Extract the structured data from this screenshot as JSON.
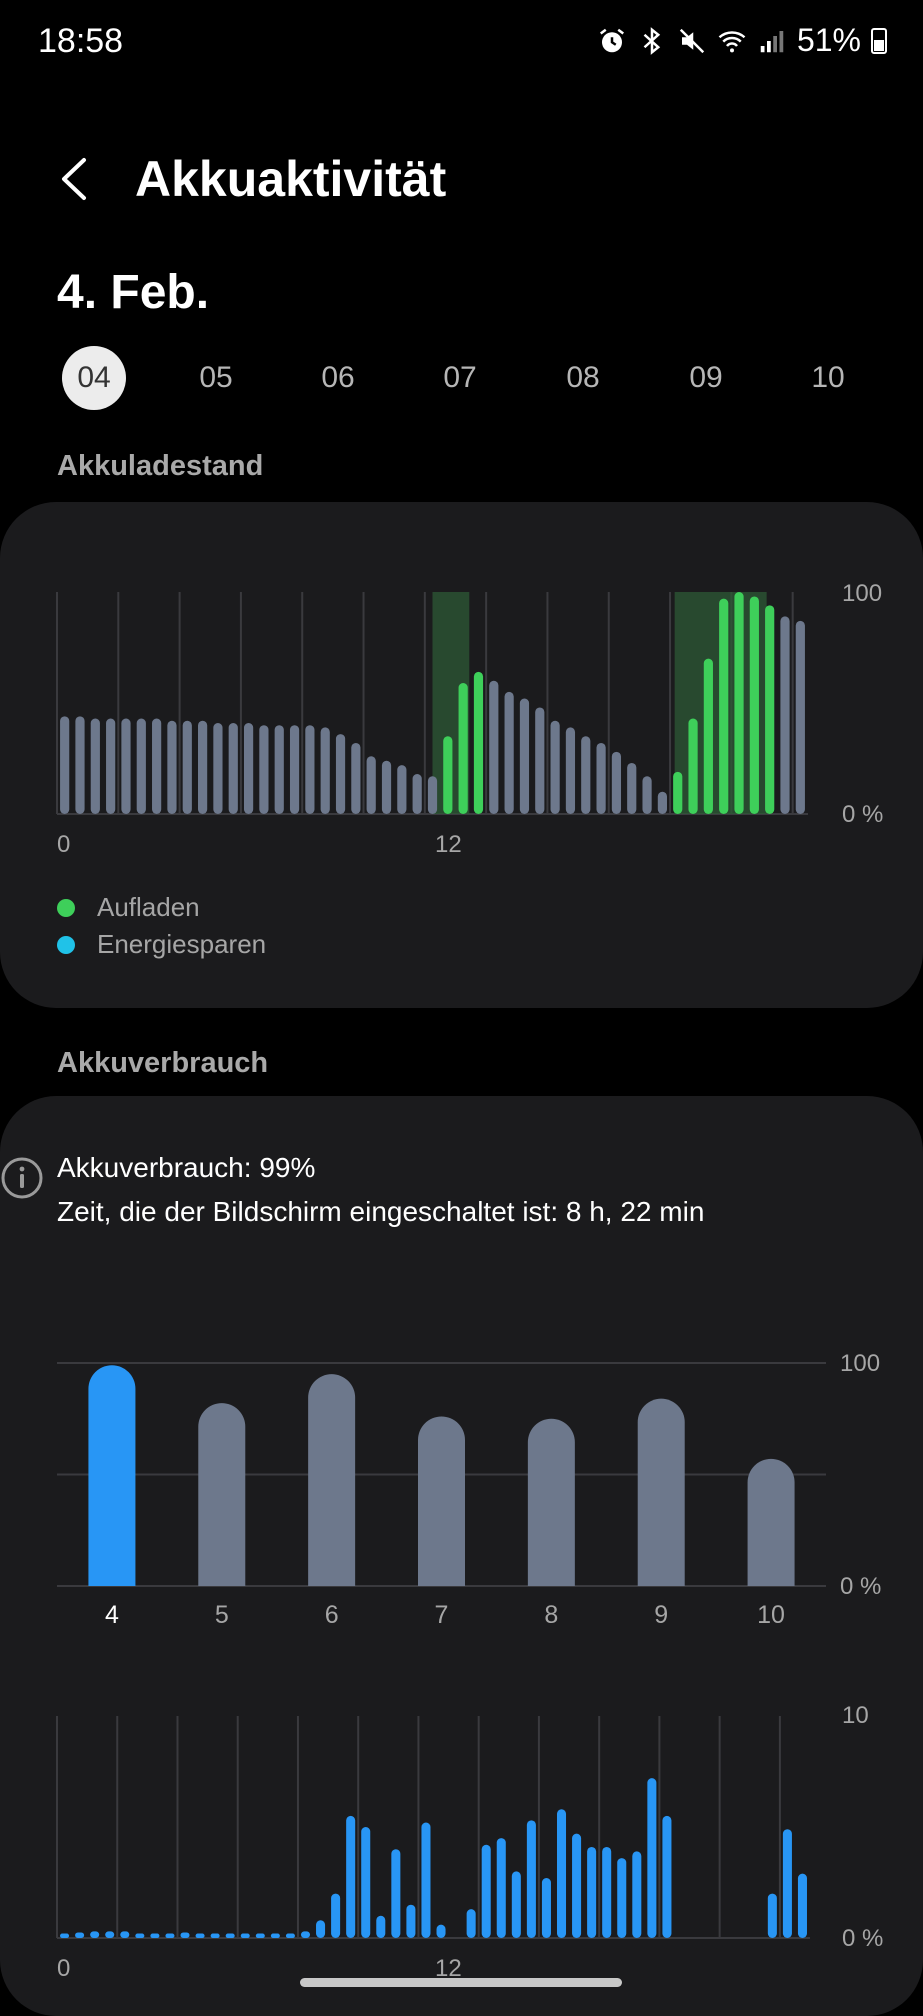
{
  "status_bar": {
    "time": "18:58",
    "battery_percent": "51%",
    "battery_level": 0.51,
    "icons": [
      "alarm-icon",
      "bluetooth-icon",
      "mute-icon",
      "wifi-icon",
      "signal-icon",
      "battery-icon"
    ]
  },
  "header": {
    "title": "Akkuaktivität",
    "back_icon": "back-arrow-icon"
  },
  "date": {
    "title": "4. Feb.",
    "days": [
      "04",
      "05",
      "06",
      "07",
      "08",
      "09",
      "10"
    ],
    "selected_index": 0
  },
  "level_section": {
    "label": "Akkuladestand",
    "legend": [
      {
        "label": "Aufladen",
        "color": "#3ecf5a"
      },
      {
        "label": "Energiesparen",
        "color": "#20c2e8"
      }
    ]
  },
  "usage_section": {
    "label": "Akkuverbrauch",
    "usage_line": "Akkuverbrauch: 99%",
    "screen_line": "Zeit, die der Bildschirm eingeschaltet ist: 8 h, 22 min"
  },
  "colors": {
    "background": "#000000",
    "card": "#1b1b1d",
    "bar_gray": "#6d788c",
    "charging": "#3ecf5a",
    "charging_band": "#2e5a36",
    "usage_blue": "#2896f5",
    "grid": "#3a3a3e",
    "label_gray": "#a6a6a6"
  },
  "chart_data": [
    {
      "type": "bar",
      "x_ticks": [
        "0",
        "12"
      ],
      "ylim": [
        0,
        100
      ],
      "y_ticks": [
        "100",
        "0 %"
      ],
      "values": [
        44,
        44,
        43,
        43,
        43,
        43,
        43,
        42,
        42,
        42,
        41,
        41,
        41,
        40,
        40,
        40,
        40,
        39,
        36,
        32,
        26,
        24,
        22,
        18,
        17,
        35,
        59,
        64,
        60,
        55,
        52,
        48,
        42,
        39,
        35,
        32,
        28,
        23,
        17,
        10,
        19,
        43,
        70,
        97,
        100,
        98,
        94,
        89,
        87
      ],
      "charging": [
        false,
        false,
        false,
        false,
        false,
        false,
        false,
        false,
        false,
        false,
        false,
        false,
        false,
        false,
        false,
        false,
        false,
        false,
        false,
        false,
        false,
        false,
        false,
        false,
        false,
        true,
        true,
        true,
        false,
        false,
        false,
        false,
        false,
        false,
        false,
        false,
        false,
        false,
        false,
        false,
        true,
        true,
        true,
        true,
        true,
        true,
        true,
        false,
        false
      ],
      "charging_periods": [
        [
          24.5,
          26.9
        ],
        [
          40.3,
          46.3
        ]
      ],
      "grid": true
    },
    {
      "type": "bar",
      "categories": [
        "4",
        "5",
        "6",
        "7",
        "8",
        "9",
        "10"
      ],
      "values": [
        99,
        82,
        95,
        76,
        75,
        84,
        57
      ],
      "selected_index": 0,
      "ylim": [
        0,
        100
      ],
      "y_ticks": [
        "100",
        "0 %"
      ],
      "grid": true
    },
    {
      "type": "bar",
      "x_ticks": [
        "0",
        "12"
      ],
      "ylim": [
        0,
        10
      ],
      "y_ticks": [
        "10",
        "0 %"
      ],
      "values": [
        0.2,
        0.25,
        0.3,
        0.3,
        0.3,
        0.2,
        0.2,
        0.2,
        0.25,
        0.2,
        0.2,
        0.2,
        0.2,
        0.2,
        0.2,
        0.2,
        0.3,
        0.8,
        2,
        5.5,
        5,
        1,
        4,
        1.5,
        5.2,
        0.6,
        0,
        1.3,
        4.2,
        4.5,
        3,
        5.3,
        2.7,
        5.8,
        4.7,
        4.1,
        4.1,
        3.6,
        3.9,
        7.2,
        5.5,
        0,
        0,
        0,
        0,
        0,
        0,
        2,
        4.9,
        2.9
      ],
      "grid": true
    }
  ]
}
